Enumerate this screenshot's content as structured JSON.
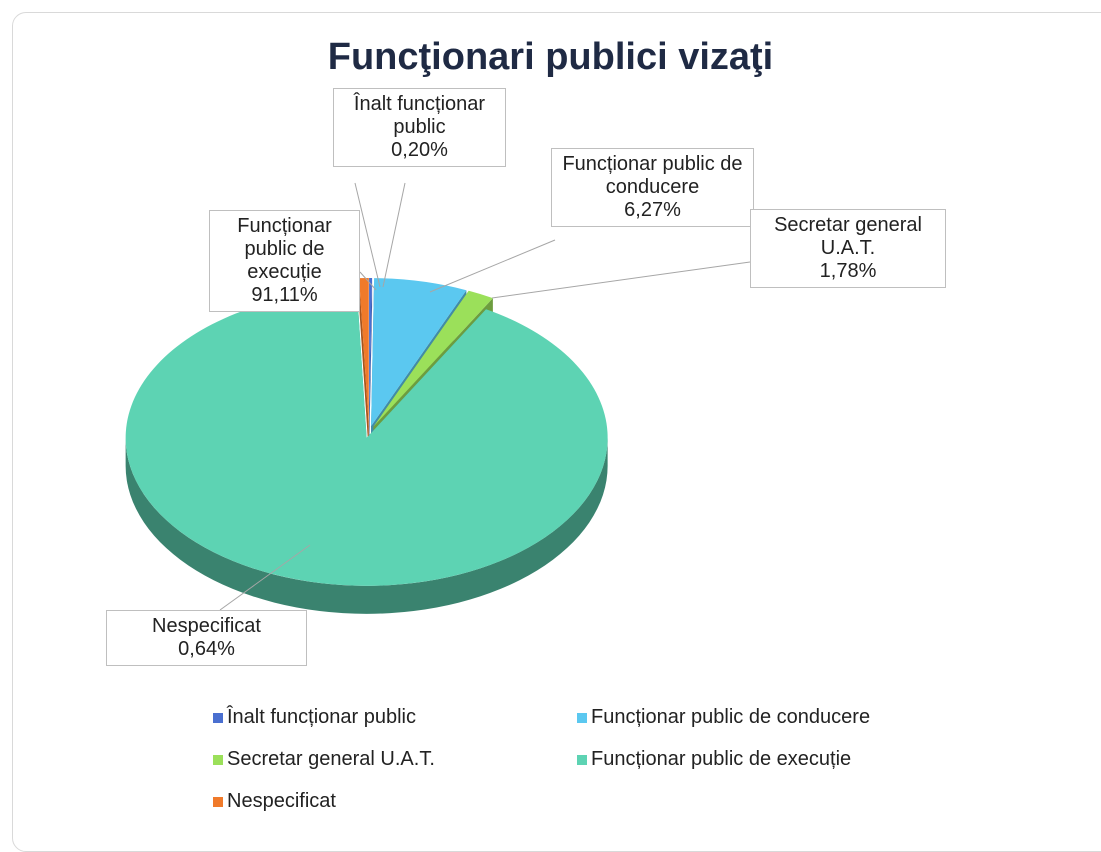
{
  "chart_data": {
    "type": "pie3d",
    "title": "Funcţionari publici vizaţi",
    "categories": [
      "Înalt funcționar public",
      "Funcționar public de conducere",
      "Secretar general U.A.T.",
      "Funcționar public de execuție",
      "Nespecificat"
    ],
    "values": [
      0.2,
      6.27,
      1.78,
      91.11,
      0.64
    ],
    "value_labels": [
      "0,20%",
      "6,27%",
      "1,78%",
      "91,11%",
      "0,64%"
    ],
    "colors": [
      "#4a6fd0",
      "#5bc8f0",
      "#9be05a",
      "#5dd3b3",
      "#f07a2a"
    ],
    "legend": "bottom"
  }
}
